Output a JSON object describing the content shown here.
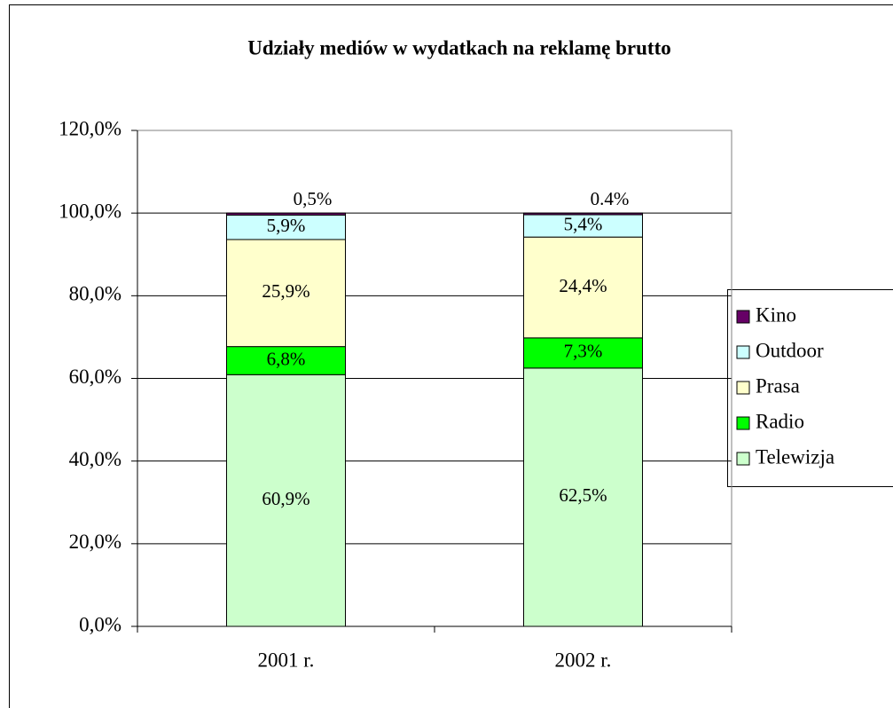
{
  "chart_data": {
    "type": "stacked_bar",
    "title": "Udziały mediów w wydatkach na reklamę brutto",
    "categories": [
      "2001 r.",
      "2002 r."
    ],
    "series": [
      {
        "name": "Telewizja",
        "color": "#ccffcc",
        "values": [
          60.9,
          62.5
        ],
        "value_labels": [
          "60,9%",
          "62,5%"
        ]
      },
      {
        "name": "Radio",
        "color": "#00ff00",
        "values": [
          6.8,
          7.3
        ],
        "value_labels": [
          "6,8%",
          "7,3%"
        ]
      },
      {
        "name": "Prasa",
        "color": "#ffffcc",
        "values": [
          25.9,
          24.4
        ],
        "value_labels": [
          "25,9%",
          "24,4%"
        ]
      },
      {
        "name": "Outdoor",
        "color": "#ccffff",
        "values": [
          5.9,
          5.4
        ],
        "value_labels": [
          "5,9%",
          "5,4%"
        ]
      },
      {
        "name": "Kino",
        "color": "#660066",
        "values": [
          0.5,
          0.4
        ],
        "value_labels": [
          "0,5%",
          "0.4%"
        ]
      }
    ],
    "ylim": [
      0,
      120
    ],
    "yticks": [
      {
        "value": 0,
        "label": "0,0%"
      },
      {
        "value": 20,
        "label": "20,0%"
      },
      {
        "value": 40,
        "label": "40,0%"
      },
      {
        "value": 60,
        "label": "60,0%"
      },
      {
        "value": 80,
        "label": "80,0%"
      },
      {
        "value": 100,
        "label": "100,0%"
      },
      {
        "value": 120,
        "label": "120,0%"
      }
    ],
    "grid": true,
    "legend": "right"
  }
}
